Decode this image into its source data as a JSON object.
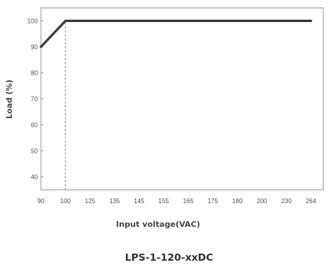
{
  "chart_data": {
    "type": "line",
    "title": "",
    "xlabel": "Input voltage(VAC)",
    "ylabel": "Load (%)",
    "x_categories": [
      "90",
      "100",
      "125",
      "135",
      "145",
      "155",
      "165",
      "175",
      "180",
      "200",
      "230",
      "264"
    ],
    "y_ticks": [
      "40",
      "50",
      "60",
      "70",
      "80",
      "90",
      "100"
    ],
    "ylim": [
      35,
      105
    ],
    "grid": false,
    "series": [
      {
        "points": [
          {
            "x": "90",
            "y": 90
          },
          {
            "x": "100",
            "y": 100
          },
          {
            "x": "264",
            "y": 100
          }
        ]
      }
    ],
    "reference_line": {
      "x": "100",
      "style": "dashed"
    },
    "caption": "LPS-1-120-xxDC"
  },
  "colors": {
    "line": "#3a3a3a",
    "frame": "#999999",
    "reference": "#888888"
  }
}
